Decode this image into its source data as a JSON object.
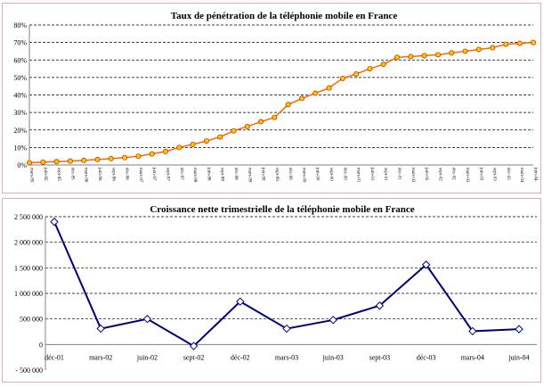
{
  "charts": [
    {
      "chart_data": {
        "type": "line",
        "title": "Taux de pénétration de la téléphonie mobile en France",
        "ylim": [
          0,
          80
        ],
        "yticks": [
          "0%",
          "10%",
          "20%",
          "30%",
          "40%",
          "50%",
          "60%",
          "70%",
          "80%"
        ],
        "grid": true,
        "colors": {
          "line": "#ff6600",
          "marker_fill": "#ffcc00",
          "marker_stroke": "#cc3300"
        },
        "x": [
          "mars-95",
          "juin-95",
          "sept-95",
          "déc-95",
          "mars-96",
          "juin-96",
          "sept-96",
          "déc-96",
          "mars-97",
          "juin-97",
          "sept-97",
          "déc-97",
          "mars-98",
          "juin-98",
          "sept-98",
          "déc-98",
          "mars-99",
          "juin-99",
          "sept-99",
          "déc-99",
          "mars-00",
          "juin-00",
          "sept-00",
          "déc-00",
          "mars-01",
          "juin-01",
          "sept-01",
          "déc-01",
          "mars-02",
          "juin-02",
          "sept-02",
          "déc-02",
          "mars-03",
          "juin-03",
          "sept-03",
          "déc-03",
          "mars-04",
          "juin-04"
        ],
        "values": [
          1.3,
          1.6,
          1.9,
          2.2,
          2.6,
          3.1,
          3.6,
          4.2,
          5.0,
          6.3,
          7.7,
          10.0,
          11.8,
          13.7,
          16.0,
          19.5,
          22.0,
          24.7,
          27.2,
          34.5,
          38.0,
          41.0,
          44.0,
          49.5,
          52.0,
          55.0,
          57.5,
          61.5,
          62.0,
          62.5,
          63.0,
          64.0,
          65.0,
          66.0,
          67.0,
          69.0,
          69.5,
          70.0
        ]
      }
    },
    {
      "chart_data": {
        "type": "line",
        "title": "Croissance nette trimestrielle de la téléphonie mobile en France",
        "ylim": [
          -500000,
          2500000
        ],
        "yticks": [
          "- 500 000",
          "0",
          "500 000",
          "1 000 000",
          "1 500 000",
          "2 000 000",
          "2 500 000"
        ],
        "grid": true,
        "colors": {
          "line": "#000080",
          "marker_fill": "#ffffff",
          "marker_stroke": "#000080"
        },
        "x": [
          "déc-01",
          "mars-02",
          "juin-02",
          "sept-02",
          "déc-02",
          "mars-03",
          "juin-03",
          "sept-03",
          "déc-03",
          "mars-04",
          "juin-04"
        ],
        "values": [
          2400000,
          310000,
          500000,
          -30000,
          840000,
          310000,
          480000,
          760000,
          1560000,
          260000,
          300000
        ]
      }
    }
  ]
}
